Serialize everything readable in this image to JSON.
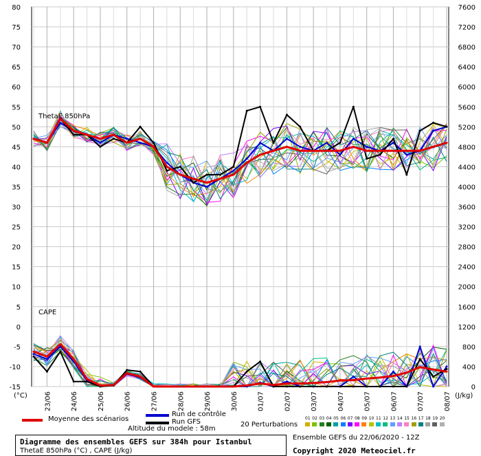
{
  "chart_data": [
    {
      "type": "line",
      "panel": "ThetaE",
      "title": "ThetaE 850hPa",
      "ylabel": "°C",
      "ylim": [
        30,
        80
      ],
      "yticks": [
        30,
        35,
        40,
        45,
        50,
        55,
        60,
        65,
        70,
        75,
        80
      ],
      "x": [
        "22/06 12Z",
        "23/06",
        "23/06 12Z",
        "24/06",
        "24/06 12Z",
        "25/06",
        "25/06 12Z",
        "26/06",
        "26/06 12Z",
        "27/06",
        "27/06 12Z",
        "28/06",
        "28/06 12Z",
        "29/06",
        "29/06 12Z",
        "30/06",
        "30/06 12Z",
        "01/07",
        "01/07 12Z",
        "02/07",
        "02/07 12Z",
        "03/07",
        "03/07 12Z",
        "04/07",
        "04/07 12Z",
        "05/07",
        "05/07 12Z",
        "06/07",
        "06/07 12Z",
        "07/07",
        "07/07 12Z",
        "08/07"
      ],
      "series": [
        {
          "name": "Moyenne des scénarios",
          "color": "#e00000",
          "values": [
            47,
            46,
            52,
            49,
            48,
            47,
            48,
            46,
            47,
            45,
            40,
            38,
            37,
            36,
            37,
            38,
            41,
            43,
            44,
            45,
            44,
            44,
            44,
            44,
            45,
            44,
            44,
            44,
            44,
            44,
            45,
            46
          ]
        },
        {
          "name": "Run de contrôle",
          "color": "#0000d0",
          "values": [
            47,
            46,
            51,
            49,
            48,
            46,
            48,
            47,
            46,
            45,
            41,
            38,
            36,
            35,
            37,
            39,
            42,
            46,
            44,
            47,
            45,
            44,
            46,
            43,
            47,
            45,
            44,
            46,
            43,
            44,
            49,
            50
          ]
        },
        {
          "name": "Run GFS",
          "color": "#000000",
          "values": [
            47,
            46,
            52,
            48,
            48,
            45,
            47,
            46,
            50,
            46,
            39,
            40,
            36,
            38,
            38,
            40,
            54,
            55,
            46,
            53,
            50,
            44,
            44,
            46,
            55,
            42,
            43,
            47,
            38,
            49,
            51,
            50
          ]
        }
      ]
    },
    {
      "type": "line",
      "panel": "CAPE",
      "title": "CAPE",
      "ylabel": "J/kg",
      "ylim": [
        0,
        7600
      ],
      "yticks": [
        0,
        400,
        800,
        1200,
        1600,
        2000,
        2400,
        2800,
        3200,
        3600,
        4000,
        4400,
        4800,
        5200,
        5600,
        6000,
        6400,
        6800,
        7200,
        7600
      ],
      "x": [
        "22/06 12Z",
        "23/06",
        "23/06 12Z",
        "24/06",
        "24/06 12Z",
        "25/06",
        "25/06 12Z",
        "26/06",
        "26/06 12Z",
        "27/06",
        "27/06 12Z",
        "28/06",
        "28/06 12Z",
        "29/06",
        "29/06 12Z",
        "30/06",
        "30/06 12Z",
        "01/07",
        "01/07 12Z",
        "02/07",
        "02/07 12Z",
        "03/07",
        "03/07 12Z",
        "04/07",
        "04/07 12Z",
        "05/07",
        "05/07 12Z",
        "06/07",
        "06/07 12Z",
        "07/07",
        "07/07 12Z",
        "08/07"
      ],
      "series": [
        {
          "name": "Moyenne des scénarios",
          "color": "#e00000",
          "values": [
            700,
            600,
            850,
            550,
            150,
            20,
            30,
            270,
            200,
            0,
            0,
            0,
            0,
            0,
            0,
            0,
            20,
            60,
            30,
            60,
            60,
            70,
            90,
            120,
            130,
            160,
            180,
            210,
            280,
            390,
            340,
            300
          ]
        },
        {
          "name": "Run de contrôle",
          "color": "#0000d0",
          "values": [
            650,
            550,
            800,
            500,
            120,
            10,
            20,
            250,
            180,
            0,
            0,
            0,
            0,
            0,
            0,
            0,
            0,
            80,
            0,
            100,
            0,
            0,
            0,
            0,
            200,
            0,
            0,
            300,
            0,
            800,
            0,
            400
          ]
        },
        {
          "name": "Run GFS",
          "color": "#000000",
          "values": [
            600,
            300,
            700,
            100,
            100,
            0,
            20,
            330,
            300,
            0,
            0,
            0,
            0,
            0,
            0,
            0,
            300,
            500,
            0,
            0,
            0,
            0,
            0,
            0,
            0,
            0,
            0,
            0,
            0,
            550,
            200,
            350
          ]
        }
      ]
    }
  ],
  "labels": {
    "thetae_title": "ThetaE 850hPa",
    "cape_title": "CAPE",
    "left_unit": "(°C)",
    "right_unit": "(J/kg)",
    "left_ticks": [
      "80",
      "75",
      "70",
      "65",
      "60",
      "55",
      "50",
      "45",
      "40",
      "35",
      "30",
      "25",
      "20",
      "15",
      "10",
      "5",
      "0",
      "-5",
      "-10",
      "-15"
    ],
    "right_ticks": [
      "7600",
      "7200",
      "6800",
      "6400",
      "6000",
      "5600",
      "5200",
      "4800",
      "4400",
      "4000",
      "3600",
      "3200",
      "2800",
      "2400",
      "2000",
      "1600",
      "1200",
      "800",
      "400",
      "0"
    ],
    "date_ticks": [
      "23/06",
      "24/06",
      "25/06",
      "26/06",
      "27/06",
      "28/06",
      "29/06",
      "30/06",
      "01/07",
      "02/07",
      "03/07",
      "04/07",
      "05/07",
      "06/07",
      "07/07",
      "08/07"
    ]
  },
  "legend": {
    "mean_label": "Moyenne des scénarios",
    "control_label": "Run de contrôle",
    "gfs_label": "Run GFS",
    "altitude": "Altitude du modele : 58m",
    "perturbations_label": "20 Perturbations",
    "pert_numbers": [
      "01",
      "02",
      "03",
      "04",
      "05",
      "06",
      "07",
      "08",
      "09",
      "10",
      "11",
      "12",
      "13",
      "14",
      "15",
      "16",
      "17",
      "18",
      "19",
      "20"
    ],
    "pert_colors": [
      "#d4b000",
      "#80c000",
      "#208020",
      "#006000",
      "#00a0a0",
      "#0080ff",
      "#8000ff",
      "#ff00ff",
      "#ff8000",
      "#c0c000",
      "#00c0c0",
      "#00c080",
      "#60a0ff",
      "#c080ff",
      "#ff80c0",
      "#a0a000",
      "#008080",
      "#a0a0a0",
      "#606060",
      "#b0b0b0"
    ]
  },
  "footer": {
    "title": "Diagramme des ensembles GEFS sur 384h pour Istanbul",
    "subtitle": "ThetaE 850hPa (°C) , CAPE (J/kg)",
    "ensemble": "Ensemble GEFS du 22/06/2020 - 12Z",
    "copyright": "Copyright 2020 Meteociel.fr"
  }
}
